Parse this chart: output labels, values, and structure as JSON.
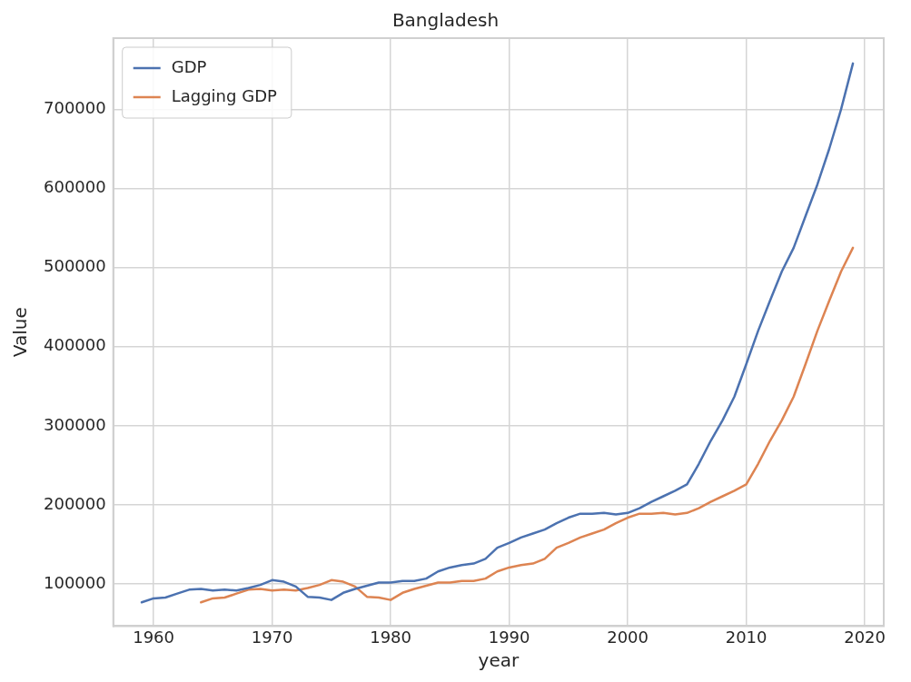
{
  "chart_data": {
    "type": "line",
    "title": "Bangladesh",
    "xlabel": "year",
    "ylabel": "Value",
    "x": [
      1959,
      1960,
      1961,
      1962,
      1963,
      1964,
      1965,
      1966,
      1967,
      1968,
      1969,
      1970,
      1971,
      1972,
      1973,
      1974,
      1975,
      1976,
      1977,
      1978,
      1979,
      1980,
      1981,
      1982,
      1983,
      1984,
      1985,
      1986,
      1987,
      1988,
      1989,
      1990,
      1991,
      1992,
      1993,
      1994,
      1995,
      1996,
      1997,
      1998,
      1999,
      2000,
      2001,
      2002,
      2003,
      2004,
      2005,
      2006,
      2007,
      2008,
      2009,
      2010,
      2011,
      2012,
      2013,
      2014,
      2015,
      2016,
      2017,
      2018,
      2019
    ],
    "series": [
      {
        "name": "GDP",
        "color": "#4c72b0",
        "values": [
          77000,
          82000,
          83000,
          88000,
          93000,
          94000,
          92000,
          93000,
          92000,
          95000,
          99000,
          105000,
          103000,
          97000,
          84000,
          83000,
          80000,
          89000,
          94000,
          98000,
          102000,
          102000,
          104000,
          104000,
          107000,
          116000,
          121000,
          124000,
          126000,
          132000,
          146000,
          152000,
          159000,
          164000,
          169000,
          177000,
          184000,
          189000,
          189000,
          190000,
          188000,
          190000,
          196000,
          204000,
          211000,
          218000,
          226000,
          252000,
          281000,
          307000,
          337000,
          378000,
          420000,
          458000,
          495000,
          525000,
          565000,
          605000,
          650000,
          700000,
          758000
        ]
      },
      {
        "name": "Lagging GDP",
        "color": "#dd8452",
        "values": [
          null,
          null,
          null,
          null,
          null,
          77000,
          82000,
          83000,
          88000,
          93000,
          94000,
          92000,
          93000,
          92000,
          95000,
          99000,
          105000,
          103000,
          97000,
          84000,
          83000,
          80000,
          89000,
          94000,
          98000,
          102000,
          102000,
          104000,
          104000,
          107000,
          116000,
          121000,
          124000,
          126000,
          132000,
          146000,
          152000,
          159000,
          164000,
          169000,
          177000,
          184000,
          189000,
          189000,
          190000,
          188000,
          190000,
          196000,
          204000,
          211000,
          218000,
          226000,
          252000,
          281000,
          307000,
          337000,
          378000,
          420000,
          458000,
          495000,
          525000
        ]
      }
    ],
    "xlim": [
      1956.6,
      2021.6
    ],
    "xticks": [
      1960,
      1970,
      1980,
      1990,
      2000,
      2010,
      2020
    ],
    "ylim": [
      47000,
      790000
    ],
    "yticks": [
      100000,
      200000,
      300000,
      400000,
      500000,
      600000,
      700000
    ],
    "grid": true,
    "legend": "top left",
    "marker": "none",
    "line_style": "solid"
  }
}
